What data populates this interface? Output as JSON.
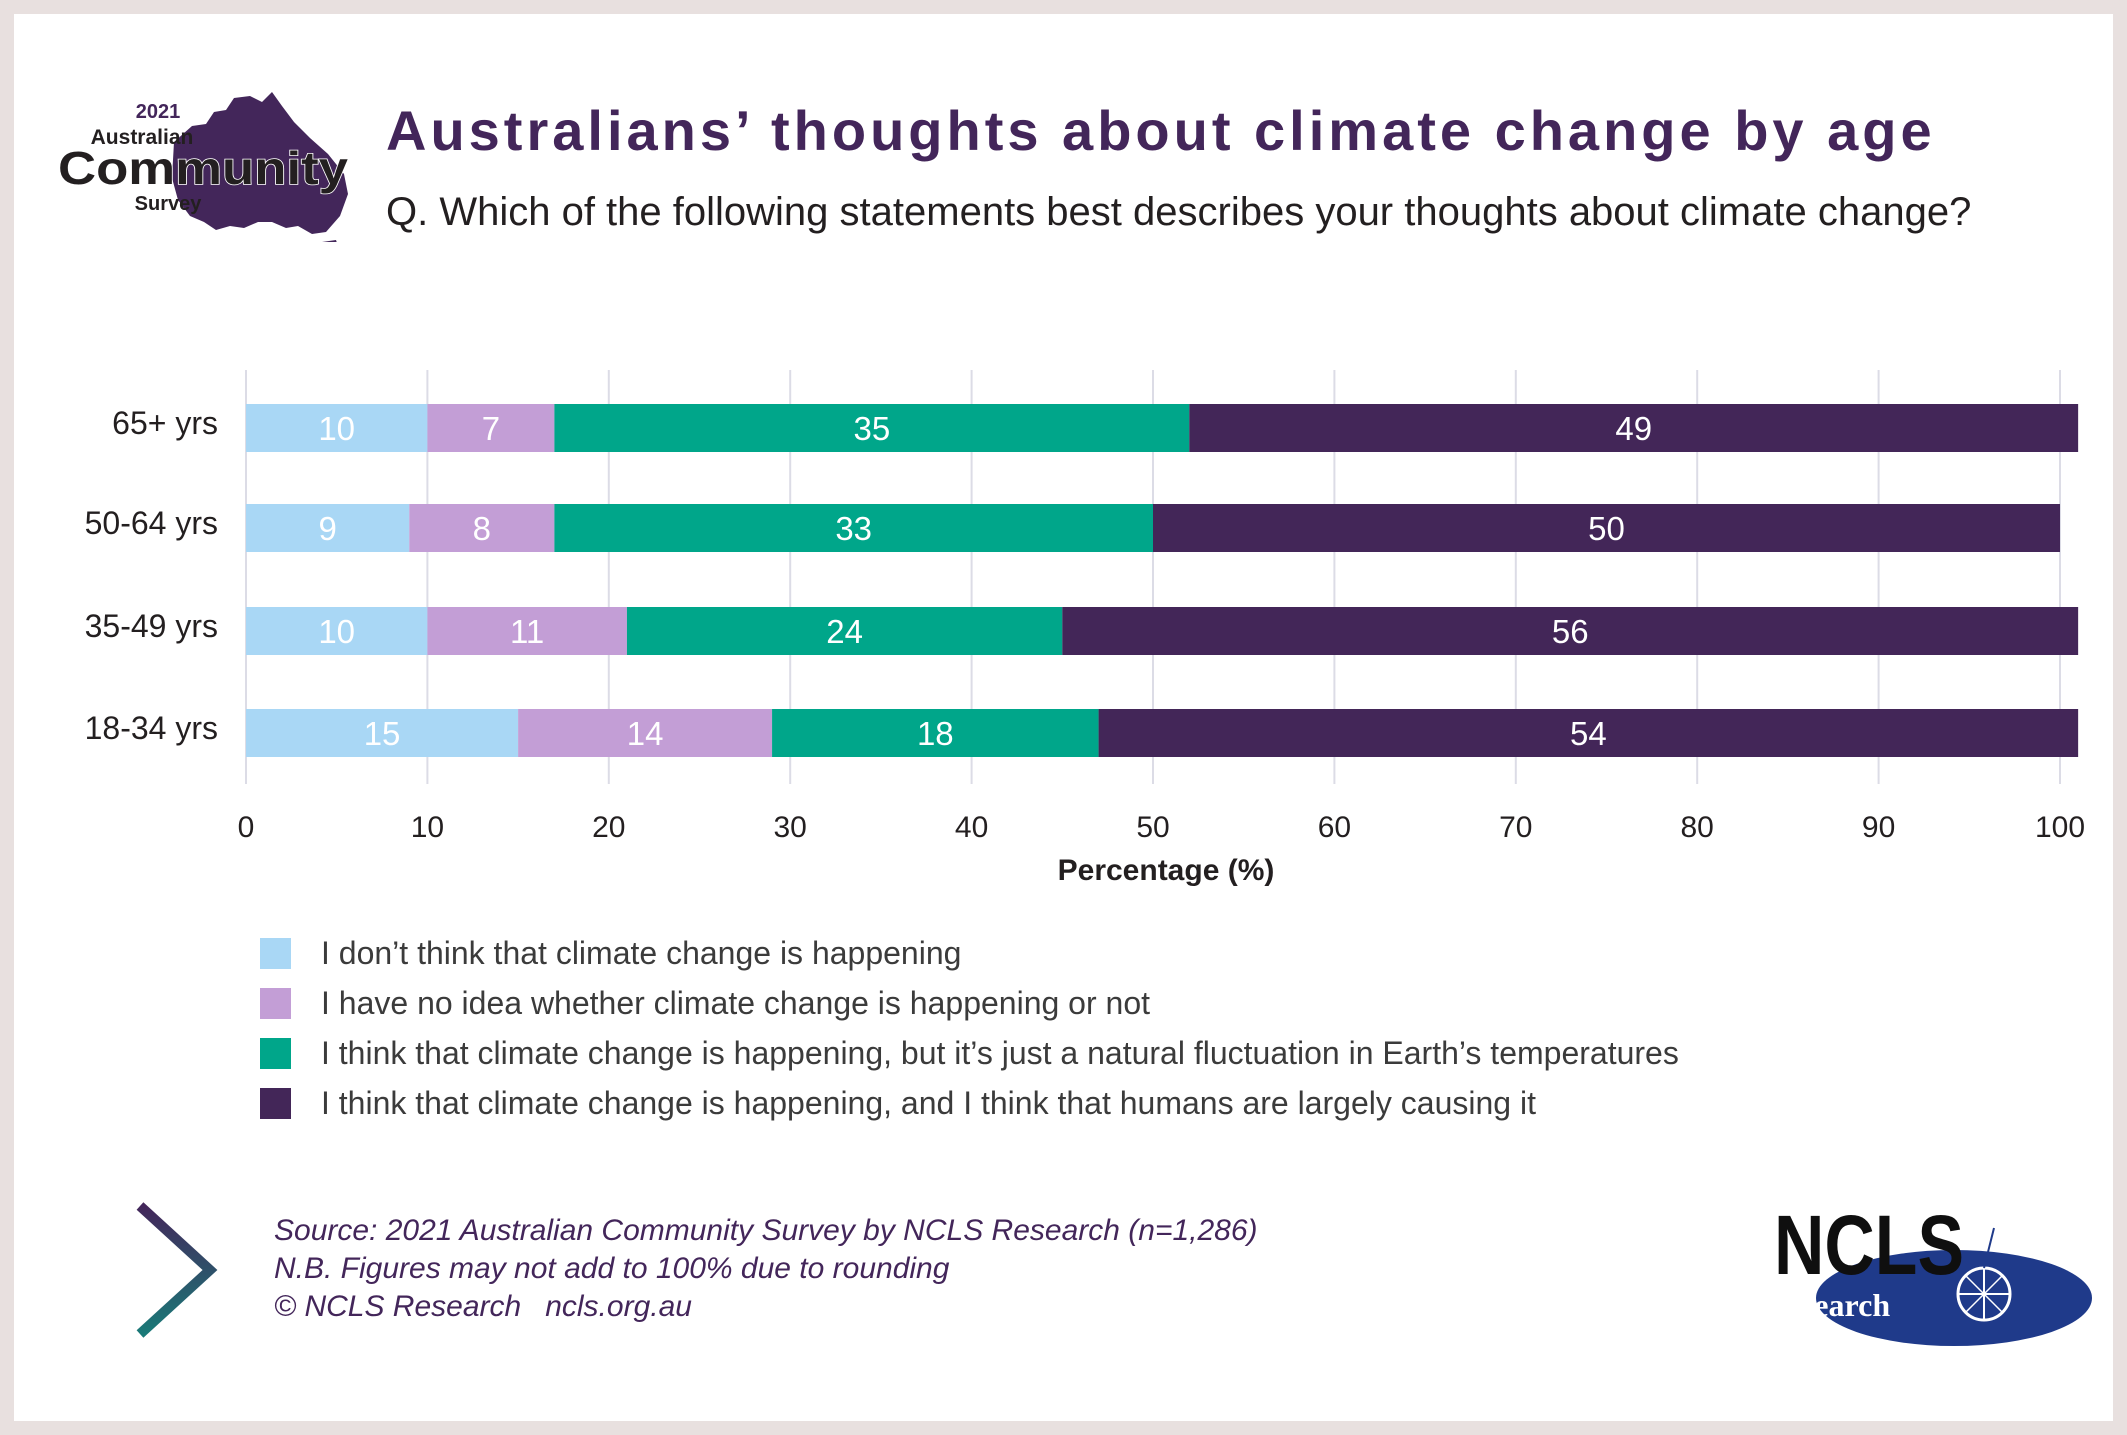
{
  "header": {
    "title": "Australians’ thoughts about climate change by age",
    "question": "Q. Which of the following statements best describes your thoughts about climate change?"
  },
  "logos": {
    "survey": {
      "year": "2021",
      "line1": "Australian",
      "line2": "Community",
      "line3": "Survey"
    },
    "ncls": {
      "word": "NCLS",
      "sub": "research"
    }
  },
  "chart_data": {
    "type": "bar",
    "orientation": "horizontal",
    "stacked": true,
    "categories": [
      "65+ yrs",
      "50-64 yrs",
      "35-49 yrs",
      "18-34 yrs"
    ],
    "series": [
      {
        "name": "I don’t think that climate change is happening",
        "values": [
          10,
          9,
          10,
          15
        ],
        "color": "#a9d7f5",
        "label_color": "#ffffff"
      },
      {
        "name": "I have no idea whether climate change is happening or not",
        "values": [
          7,
          8,
          11,
          14
        ],
        "color": "#c39ed6",
        "label_color": "#ffffff"
      },
      {
        "name": "I think that climate change is happening, but it’s just a natural fluctuation in Earth’s temperatures",
        "values": [
          35,
          33,
          24,
          18
        ],
        "color": "#00a68a",
        "label_color": "#ffffff"
      },
      {
        "name": "I think that climate change is happening, and I think that humans are largely causing it",
        "values": [
          49,
          50,
          56,
          54
        ],
        "color": "#432658",
        "label_color": "#ffffff"
      }
    ],
    "xlabel": "Percentage (%)",
    "xlim": [
      0,
      100
    ],
    "xticks": [
      0,
      10,
      20,
      30,
      40,
      50,
      60,
      70,
      80,
      90,
      100
    ],
    "grid": "vertical",
    "legend_position": "bottom-left"
  },
  "footer": {
    "source": "Source: 2021 Australian Community Survey by NCLS Research (n=1,286)",
    "note": "N.B. Figures may not add to 100% due to rounding",
    "copyright": "© NCLS Research",
    "url": "ncls.org.au"
  },
  "colors": {
    "accent": "#43265a",
    "teal": "#00a68a",
    "ncls_blue": "#1f3a8a",
    "chevron_top": "#43265a",
    "chevron_bottom": "#1a7a78"
  }
}
